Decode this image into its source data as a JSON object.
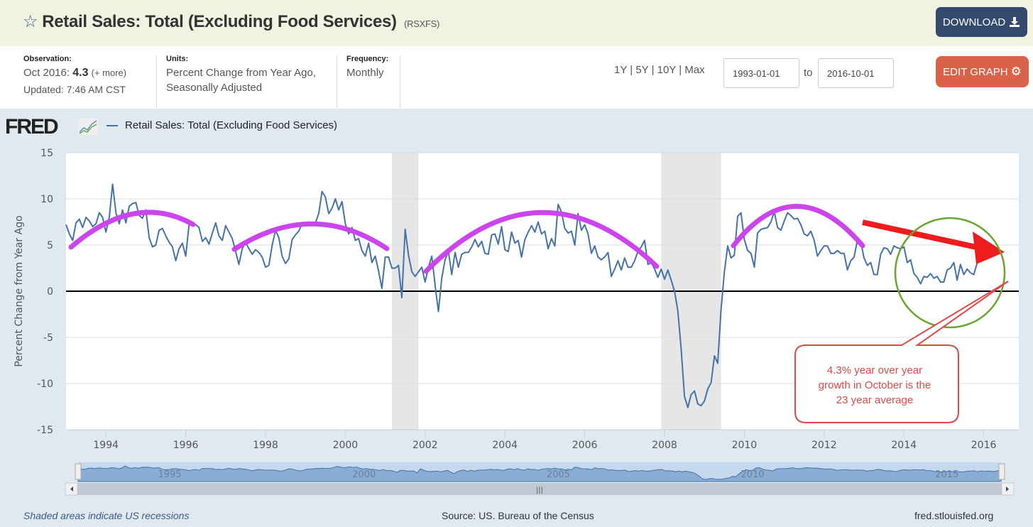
{
  "header": {
    "title": "Retail Sales: Total (Excluding Food Services)",
    "series_code": "(RSXFS)",
    "star_icon": "star-outline-icon",
    "download_label": "DOWNLOAD",
    "download_icon": "download-icon"
  },
  "info": {
    "observation_label": "Observation:",
    "observation_date": "Oct 2016:",
    "observation_value": "4.3",
    "observation_more": "(+ more)",
    "updated": "Updated: 7:46 AM CST",
    "units_label": "Units:",
    "units_line1": "Percent Change from Year Ago,",
    "units_line2": "Seasonally Adjusted",
    "frequency_label": "Frequency:",
    "frequency_value": "Monthly"
  },
  "controls": {
    "range_1y": "1Y",
    "range_5y": "5Y",
    "range_10y": "10Y",
    "range_max": "Max",
    "separator": "|",
    "start_date": "1993-01-01",
    "to_label": "to",
    "end_date": "2016-10-01",
    "edit_graph_label": "EDIT GRAPH",
    "edit_graph_icon": "gear-icon"
  },
  "logo": "FRED",
  "footer": {
    "recession_note": "Shaded areas indicate US recessions",
    "source": "Source: US. Bureau of the Census",
    "site": "fred.stlouisfed.org"
  },
  "annotation": {
    "callout_text_line1": "4.3% year over year",
    "callout_text_line2": "growth in October is the",
    "callout_text_line3": "23 year average",
    "arrow_color": "#ee1c1c",
    "circle_color": "#6aa62e",
    "arc_color": "#cc44ee",
    "callout_color": "#e04848"
  },
  "navigator": {
    "labels": [
      "1995",
      "2000",
      "2005",
      "2010",
      "2015"
    ],
    "scroll_grip": "|||"
  },
  "chart_data": {
    "type": "line",
    "title": "Retail Sales: Total (Excluding Food Services)",
    "xlabel": "",
    "ylabel": "Percent Change from Year Ago",
    "ylim": [
      -15,
      15
    ],
    "xlim": [
      "1993-01",
      "2016-10"
    ],
    "yticks": [
      -15,
      -10,
      -5,
      0,
      5,
      10,
      15
    ],
    "xticks": [
      "1994",
      "1996",
      "1998",
      "2000",
      "2002",
      "2004",
      "2006",
      "2008",
      "2010",
      "2012",
      "2014",
      "2016"
    ],
    "legend": "top-left",
    "grid": true,
    "line_color": "#4572a7",
    "recessions": [
      [
        "2001-03",
        "2001-11"
      ],
      [
        "2007-12",
        "2009-06"
      ]
    ],
    "start": "1993-01",
    "frequency": "monthly",
    "series": [
      {
        "name": "Retail Sales: Total (Excluding Food Services)",
        "values": [
          7.2,
          6.2,
          5.5,
          7.4,
          7.8,
          6.9,
          8.0,
          7.6,
          7.0,
          7.3,
          8.5,
          8.0,
          6.4,
          8.0,
          11.6,
          8.5,
          7.3,
          8.8,
          7.4,
          9.2,
          9.5,
          9.6,
          8.2,
          7.9,
          8.8,
          5.8,
          4.8,
          5.0,
          6.6,
          6.8,
          6.0,
          5.3,
          4.8,
          3.3,
          4.6,
          5.2,
          3.8,
          7.2,
          7.2,
          7.2,
          6.9,
          5.4,
          5.8,
          5.1,
          6.3,
          7.4,
          6.0,
          5.5,
          7.1,
          6.4,
          5.7,
          4.3,
          2.9,
          4.6,
          5.3,
          4.6,
          4.0,
          4.5,
          4.2,
          3.7,
          2.6,
          2.8,
          5.0,
          6.6,
          5.8,
          3.8,
          3.0,
          3.5,
          5.6,
          6.1,
          6.5,
          7.3,
          7.2,
          7.5,
          7.1,
          7.4,
          8.4,
          10.8,
          10.2,
          8.4,
          9.0,
          10.0,
          8.8,
          9.7,
          7.3,
          6.2,
          6.9,
          5.5,
          5.7,
          4.4,
          3.8,
          5.2,
          3.1,
          3.8,
          2.2,
          0.3,
          3.7,
          3.7,
          2.5,
          2.5,
          2.8,
          -0.7,
          6.7,
          3.9,
          2.1,
          1.6,
          2.1,
          2.6,
          1.0,
          2.6,
          3.8,
          0.6,
          -2.2,
          1.4,
          3.4,
          4.3,
          1.8,
          4.2,
          2.6,
          4.0,
          4.2,
          4.2,
          4.8,
          5.6,
          4.8,
          5.4,
          4.1,
          4.0,
          6.1,
          6.2,
          5.1,
          7.0,
          4.5,
          4.3,
          6.4,
          5.2,
          5.5,
          3.7,
          5.6,
          6.4,
          7.1,
          6.4,
          7.5,
          6.2,
          6.5,
          4.6,
          5.7,
          4.9,
          9.4,
          8.6,
          6.8,
          6.3,
          6.5,
          5.0,
          8.4,
          6.6,
          7.2,
          6.2,
          4.1,
          4.9,
          3.7,
          3.4,
          3.7,
          4.2,
          1.6,
          2.4,
          3.3,
          2.3,
          3.6,
          2.6,
          2.6,
          3.3,
          4.3,
          4.8,
          5.5,
          2.9,
          3.1,
          2.4,
          1.5,
          2.4,
          1.3,
          2.3,
          1.2,
          0.0,
          -2.1,
          -6.2,
          -11.4,
          -12.6,
          -11.2,
          -10.8,
          -12.2,
          -12.4,
          -11.9,
          -10.6,
          -9.9,
          -7.0,
          -7.8,
          -2.0,
          2.1,
          4.9,
          3.6,
          3.9,
          8.1,
          8.5,
          5.6,
          4.4,
          4.1,
          2.6,
          6.3,
          6.7,
          6.8,
          6.9,
          7.5,
          8.6,
          6.9,
          6.6,
          7.6,
          8.5,
          8.2,
          7.8,
          7.9,
          7.2,
          6.2,
          6.0,
          6.5,
          5.5,
          3.8,
          4.4,
          4.9,
          4.9,
          4.1,
          4.1,
          4.4,
          4.1,
          4.1,
          2.3,
          3.3,
          3.7,
          5.5,
          5.4,
          3.6,
          2.8,
          3.1,
          1.8,
          1.8,
          4.0,
          4.7,
          4.6,
          4.0,
          4.9,
          4.7,
          4.6,
          4.8,
          3.1,
          3.4,
          1.9,
          1.5,
          0.8,
          1.6,
          1.5,
          1.9,
          1.4,
          1.6,
          1.0,
          1.0,
          2.3,
          2.5,
          3.1,
          1.2,
          2.9,
          1.8,
          2.4,
          2.0,
          1.8,
          3.0,
          4.3
        ]
      }
    ]
  }
}
